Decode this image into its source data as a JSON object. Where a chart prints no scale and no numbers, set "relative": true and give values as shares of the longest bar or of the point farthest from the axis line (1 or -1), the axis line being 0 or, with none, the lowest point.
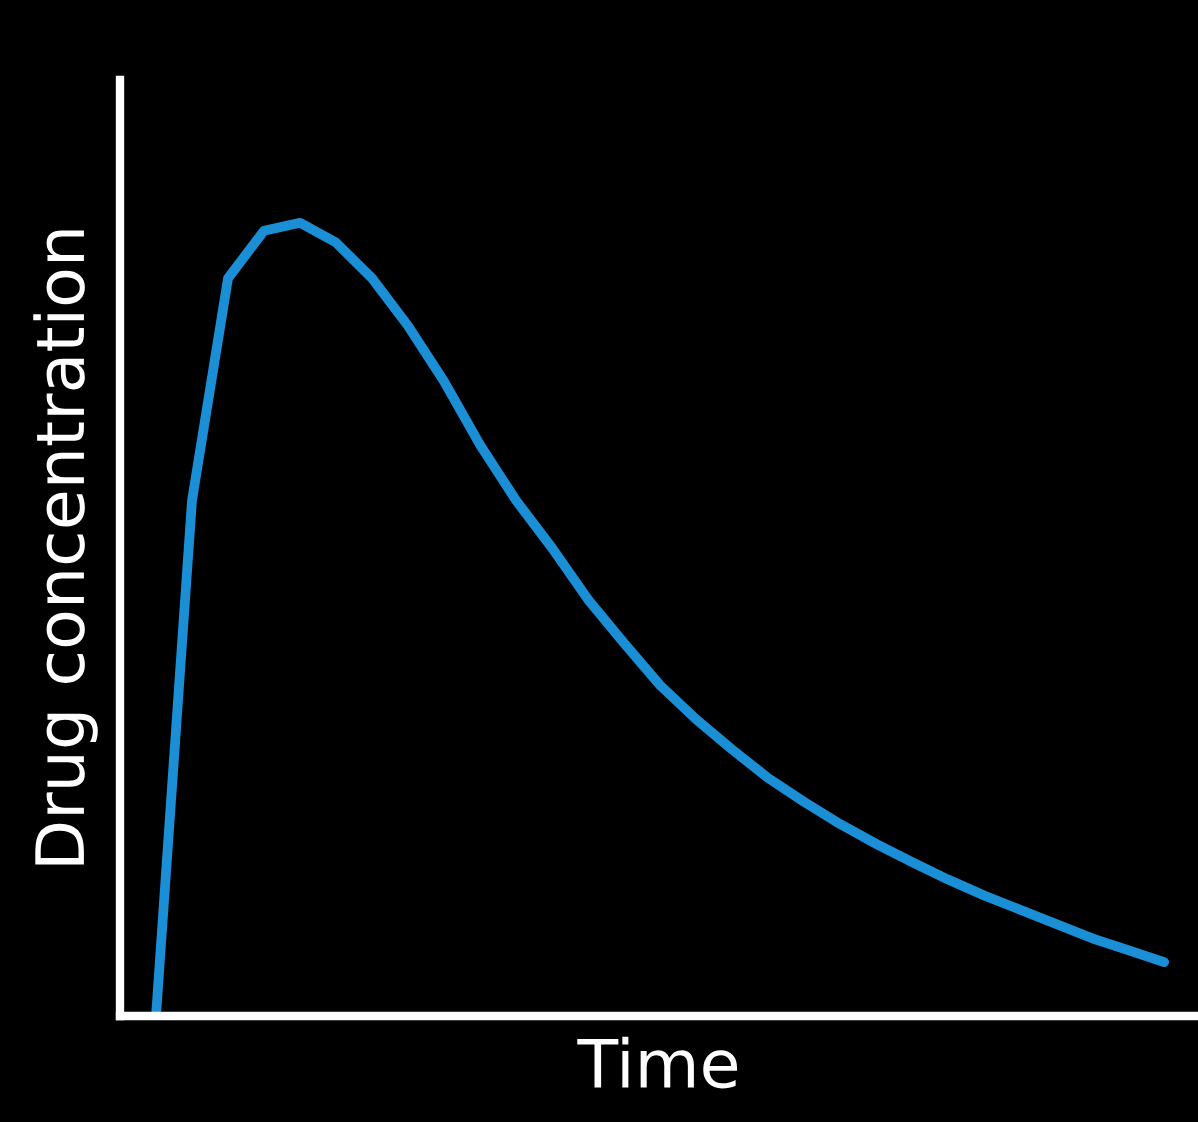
{
  "chart_data": {
    "type": "line",
    "xlabel": "Time",
    "ylabel": "Drug concentration",
    "relative": true,
    "categories": [
      null,
      null,
      null,
      null,
      null,
      null,
      null,
      null,
      null,
      null,
      null,
      null,
      null,
      null,
      null,
      null,
      null,
      null,
      null,
      null,
      null,
      null,
      null,
      null,
      null,
      null,
      null,
      null,
      null
    ],
    "series": [
      {
        "color": "#1a8fd6",
        "values": [
          0,
          0.65,
          0.93,
          0.99,
          1.0,
          0.975,
          0.93,
          0.87,
          0.8,
          0.72,
          0.65,
          0.59,
          0.525,
          0.47,
          0.417,
          0.374,
          0.336,
          0.3,
          0.27,
          0.242,
          0.217,
          0.194,
          0.172,
          0.152,
          0.134,
          0.116,
          0.098,
          0.083,
          0.068
        ]
      }
    ]
  }
}
